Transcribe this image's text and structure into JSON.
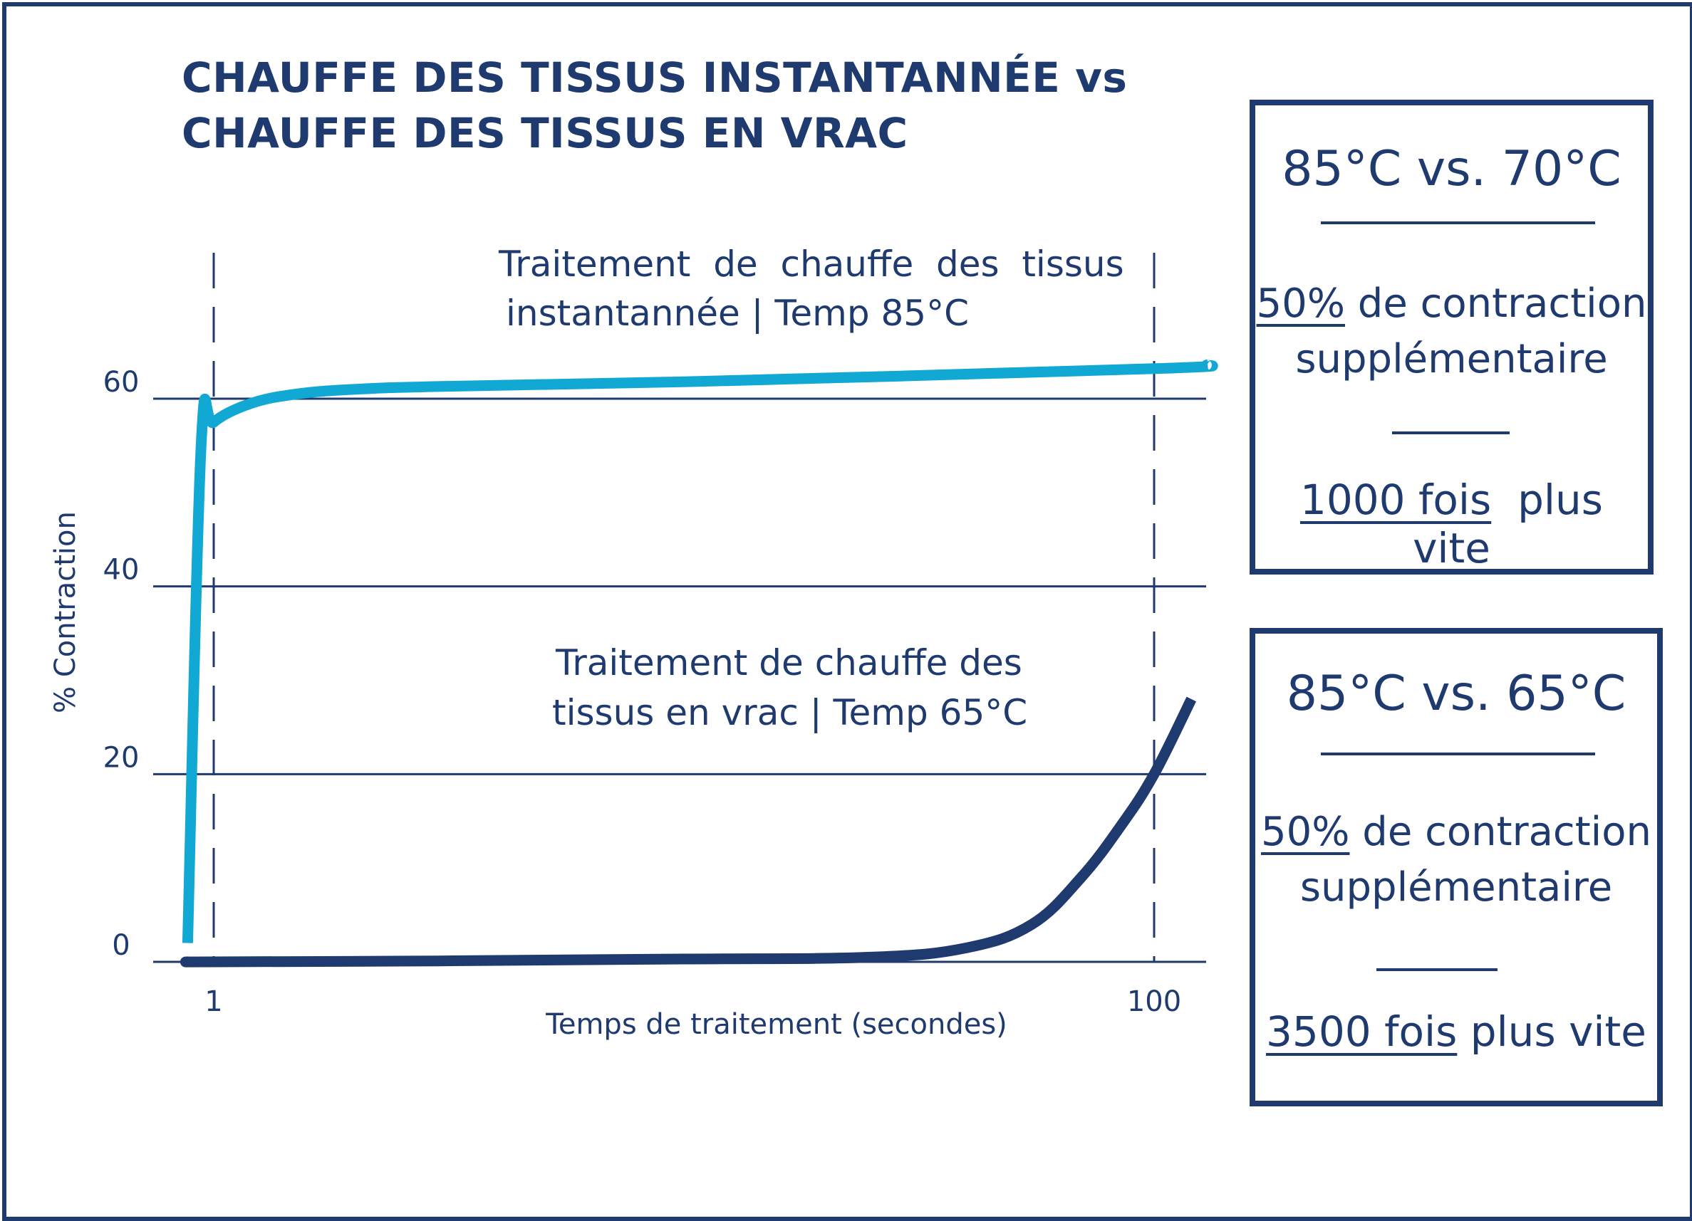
{
  "title": {
    "line1": "CHAUFFE DES TISSUS INSTANTANNÉE vs",
    "line2": "CHAUFFE DES TISSUS EN VRAC"
  },
  "chart_data": {
    "type": "line",
    "xlabel": "Temps de traitement (secondes)",
    "ylabel": "% Contraction",
    "x_scale": "log",
    "x_ticks": [
      "1",
      "100"
    ],
    "y_ticks": [
      "0",
      "20",
      "40",
      "60"
    ],
    "ylim": [
      0,
      65
    ],
    "grid": "horizontal",
    "series": [
      {
        "name": "Traitement de chauffe des tissus instantannée | Temp 85°C",
        "color": "#12a8d4",
        "x": [
          0.88,
          0.94,
          1.0,
          1.2,
          1.5,
          2,
          3,
          10,
          100,
          130
        ],
        "y": [
          2,
          55,
          57.5,
          59.5,
          60.5,
          61,
          61.3,
          61.8,
          63.2,
          63.6
        ]
      },
      {
        "name": "Traitement de chauffe des tissus en vrac | Temp 65°C",
        "color": "#1f3a6e",
        "x": [
          0.88,
          1,
          3,
          10,
          25,
          40,
          55,
          70,
          85,
          100,
          120
        ],
        "y": [
          0,
          0,
          0.1,
          0.3,
          0.5,
          1.5,
          4,
          9,
          14.5,
          20,
          28
        ]
      }
    ],
    "annotations": [
      {
        "line1": "Traitement  de  chauffe  des  tissus",
        "line2": "instantannée | Temp 85°C"
      },
      {
        "line1": "Traitement de chauffe des",
        "line2": "tissus en vrac | Temp 65°C"
      }
    ]
  },
  "boxes": [
    {
      "comparison": "85°C vs. 70°C",
      "pct": "50%",
      "pct_rest": " de contraction",
      "line2": "supplémentaire",
      "speed": "1000 fois",
      "speed_rest": "plus vite"
    },
    {
      "comparison": "85°C vs. 65°C",
      "pct": "50%",
      "pct_rest": " de contraction",
      "line2": "supplémentaire",
      "speed": "3500 fois",
      "speed_rest": " plus vite"
    }
  ]
}
